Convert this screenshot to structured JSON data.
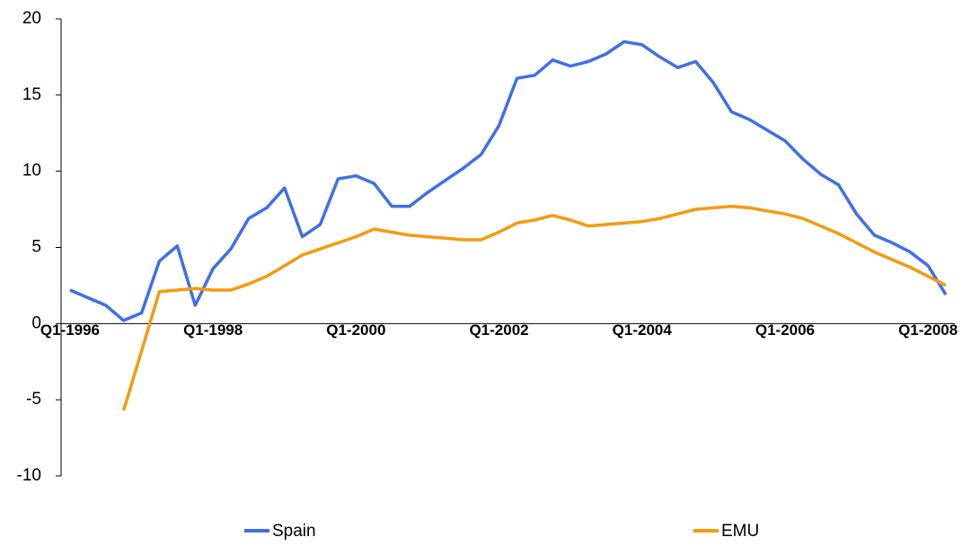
{
  "chart_data": {
    "type": "line",
    "categories": [
      "Q1-1996",
      null,
      null,
      null,
      null,
      null,
      null,
      null,
      "Q1-1998",
      null,
      null,
      null,
      null,
      null,
      null,
      null,
      "Q1-2000",
      null,
      null,
      null,
      null,
      null,
      null,
      null,
      "Q1-2002",
      null,
      null,
      null,
      null,
      null,
      null,
      null,
      "Q1-2004",
      null,
      null,
      null,
      null,
      null,
      null,
      null,
      "Q1-2006",
      null,
      null,
      null,
      null,
      null,
      null,
      null,
      "Q1-2008",
      null
    ],
    "series": [
      {
        "name": "Spain",
        "color": "#3f6fe8",
        "values": [
          2.2,
          1.7,
          1.2,
          0.2,
          0.7,
          4.1,
          5.1,
          1.2,
          3.6,
          4.9,
          6.9,
          7.6,
          8.9,
          5.7,
          6.5,
          9.5,
          9.7,
          9.2,
          7.7,
          7.7,
          8.6,
          9.4,
          10.2,
          11.1,
          13.0,
          16.1,
          16.3,
          17.3,
          16.9,
          17.2,
          17.7,
          18.5,
          18.3,
          17.5,
          16.8,
          17.2,
          15.8,
          13.9,
          13.4,
          12.7,
          12.0,
          10.8,
          9.8,
          9.1,
          7.2,
          5.8,
          5.3,
          4.7,
          3.8,
          1.9
        ]
      },
      {
        "name": "EMU",
        "color": "#f59a0e",
        "values": [
          null,
          null,
          null,
          -5.7,
          -1.8,
          2.1,
          2.2,
          2.3,
          2.2,
          2.2,
          2.6,
          3.1,
          3.8,
          4.5,
          4.9,
          5.3,
          5.7,
          6.2,
          6.0,
          5.8,
          5.7,
          5.6,
          5.5,
          5.5,
          6.0,
          6.6,
          6.8,
          7.1,
          6.8,
          6.4,
          6.5,
          6.6,
          6.7,
          6.9,
          7.2,
          7.5,
          7.6,
          7.7,
          7.6,
          7.4,
          7.2,
          6.9,
          6.4,
          5.9,
          5.3,
          4.7,
          4.2,
          3.7,
          3.1,
          2.5
        ]
      }
    ],
    "ylim": [
      -10,
      20
    ],
    "yticks": [
      -10,
      -5,
      0,
      5,
      10,
      15,
      20
    ],
    "grid": false
  }
}
